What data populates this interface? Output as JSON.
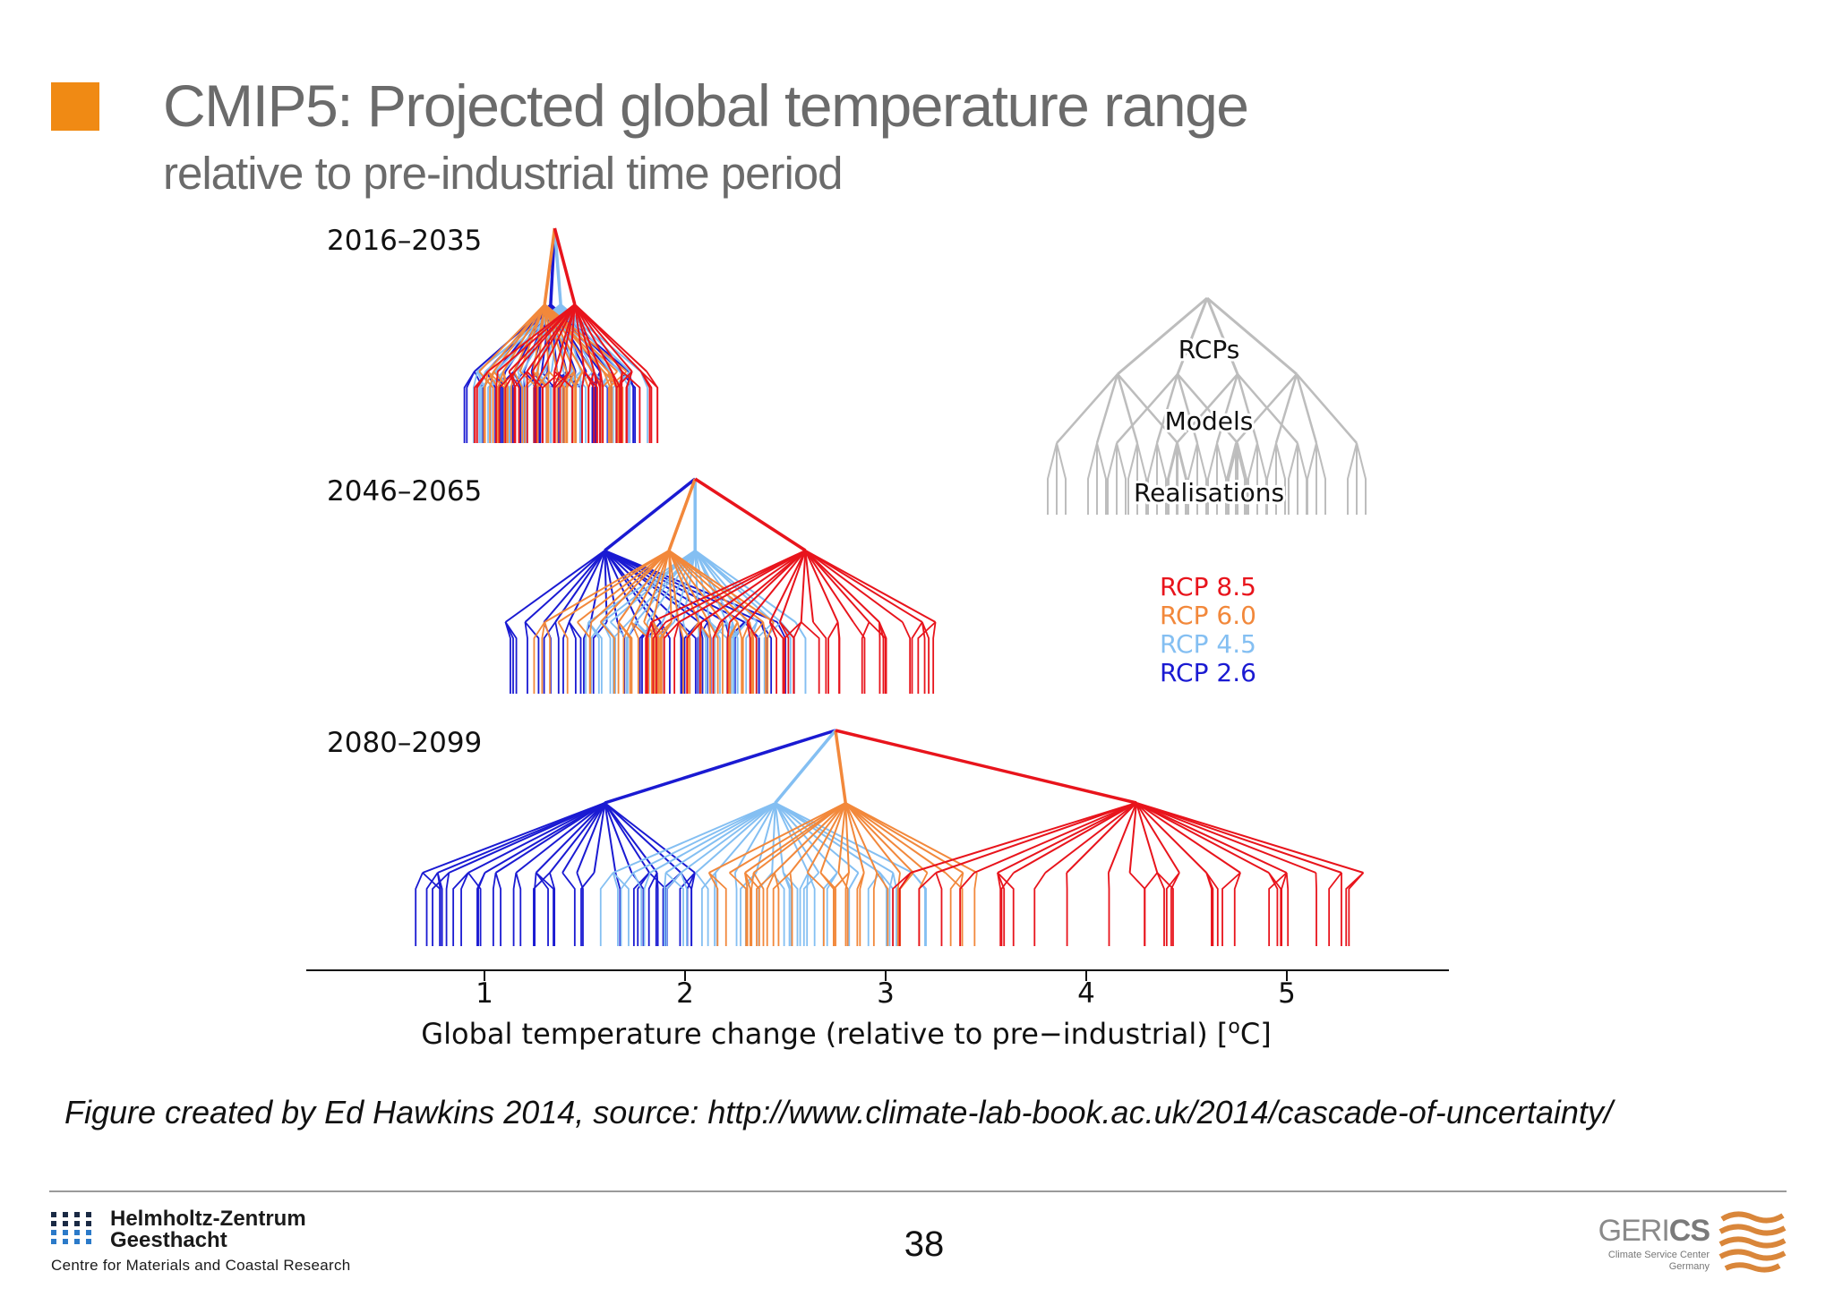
{
  "slide": {
    "title": "CMIP5: Projected global temperature range",
    "subtitle": "relative to pre-industrial time period",
    "caption": "Figure created by Ed Hawkins 2014, source: http://www.climate-lab-book.ac.uk/2014/cascade-of-uncertainty/",
    "page_number": "38",
    "bullet_color": "#f08a14"
  },
  "footer": {
    "hzg_name_line1": "Helmholtz-Zentrum",
    "hzg_name_line2": "Geesthacht",
    "hzg_tagline": "Centre for Materials and Coastal Research",
    "gerics_word_light": "GERI",
    "gerics_word_bold": "CS",
    "gerics_tagline1": "Climate Service Center",
    "gerics_tagline2": "Germany"
  },
  "chart_data": {
    "type": "cascade tree",
    "xlabel": "Global temperature change (relative to pre−industrial)",
    "xlabel_unit": "[oC]",
    "xticks": [
      1,
      2,
      3,
      4,
      5
    ],
    "xlim": [
      -0.8,
      5.9
    ],
    "colors": {
      "RCP 8.5": "#e8141c",
      "RCP 6.0": "#f2883b",
      "RCP 4.5": "#84bff2",
      "RCP 2.6": "#1a1ad2"
    },
    "legend": [
      "RCP 8.5",
      "RCP 6.0",
      "RCP 4.5",
      "RCP 2.6"
    ],
    "legend_placement": "right",
    "schematic": {
      "labels": [
        "RCPs",
        "Models",
        "Realisations"
      ],
      "color": "#bdbdbd"
    },
    "panels": [
      {
        "period": "2016–2035",
        "root": 1.35,
        "scenarios": [
          {
            "name": "RCP 2.6",
            "mean": 1.33,
            "model_range": [
              0.95,
              1.75
            ],
            "realisation_range": [
              0.9,
              1.85
            ]
          },
          {
            "name": "RCP 4.5",
            "mean": 1.38,
            "model_range": [
              0.95,
              1.8
            ],
            "realisation_range": [
              0.9,
              1.85
            ]
          },
          {
            "name": "RCP 6.0",
            "mean": 1.3,
            "model_range": [
              0.95,
              1.75
            ],
            "realisation_range": [
              0.9,
              1.85
            ]
          },
          {
            "name": "RCP 8.5",
            "mean": 1.45,
            "model_range": [
              1.0,
              1.85
            ],
            "realisation_range": [
              0.9,
              1.9
            ]
          }
        ]
      },
      {
        "period": "2046–2065",
        "root": 2.05,
        "scenarios": [
          {
            "name": "RCP 2.6",
            "mean": 1.6,
            "model_range": [
              1.1,
              2.5
            ],
            "realisation_range": [
              1.0,
              2.5
            ]
          },
          {
            "name": "RCP 4.5",
            "mean": 2.05,
            "model_range": [
              1.5,
              2.6
            ],
            "realisation_range": [
              1.4,
              2.6
            ]
          },
          {
            "name": "RCP 6.0",
            "mean": 1.92,
            "model_range": [
              1.3,
              2.5
            ],
            "realisation_range": [
              1.2,
              2.5
            ]
          },
          {
            "name": "RCP 8.5",
            "mean": 2.6,
            "model_range": [
              1.8,
              3.3
            ],
            "realisation_range": [
              1.6,
              3.35
            ]
          }
        ]
      },
      {
        "period": "2080–2099",
        "root": 2.75,
        "scenarios": [
          {
            "name": "RCP 2.6",
            "mean": 1.6,
            "model_range": [
              0.65,
              2.1
            ],
            "realisation_range": [
              0.55,
              2.15
            ]
          },
          {
            "name": "RCP 4.5",
            "mean": 2.45,
            "model_range": [
              1.6,
              3.2
            ],
            "realisation_range": [
              1.5,
              3.25
            ]
          },
          {
            "name": "RCP 6.0",
            "mean": 2.8,
            "model_range": [
              2.1,
              3.5
            ],
            "realisation_range": [
              2.0,
              3.6
            ]
          },
          {
            "name": "RCP 8.5",
            "mean": 4.25,
            "model_range": [
              3.1,
              5.5
            ],
            "realisation_range": [
              3.0,
              5.5
            ]
          }
        ]
      }
    ]
  }
}
